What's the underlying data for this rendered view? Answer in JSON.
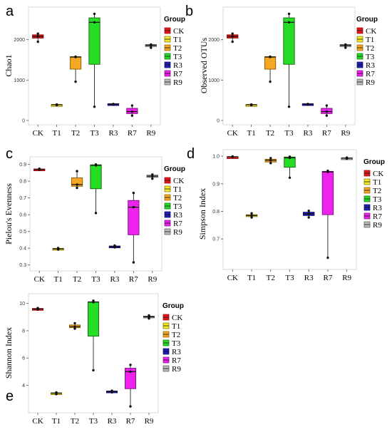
{
  "legend": {
    "title": "Group",
    "items": [
      {
        "label": "CK",
        "color": "#e31a1c"
      },
      {
        "label": "T1",
        "color": "#f2ea28"
      },
      {
        "label": "T2",
        "color": "#f5a623"
      },
      {
        "label": "T3",
        "color": "#26dd26"
      },
      {
        "label": "R3",
        "color": "#1f1fb4"
      },
      {
        "label": "R7",
        "color": "#ee22ee"
      },
      {
        "label": "R9",
        "color": "#bdbdbd"
      }
    ]
  },
  "chart_data": [
    {
      "panel": "a",
      "type": "box",
      "ylabel": "Chao1",
      "ylim": [
        0,
        2700
      ],
      "yticks": [
        0,
        1000,
        2000
      ],
      "categories": [
        "CK",
        "T1",
        "T2",
        "T3",
        "R3",
        "R7",
        "R9"
      ],
      "boxes": [
        {
          "min": 1950,
          "q1": 2040,
          "median": 2080,
          "q3": 2120,
          "max": 2160
        },
        {
          "min": 370,
          "q1": 385,
          "median": 390,
          "q3": 395,
          "max": 400
        },
        {
          "min": 960,
          "q1": 1270,
          "median": 1570,
          "q3": 1580,
          "max": 1590
        },
        {
          "min": 340,
          "q1": 1390,
          "median": 2430,
          "q3": 2540,
          "max": 2640
        },
        {
          "min": 385,
          "q1": 395,
          "median": 405,
          "q3": 415,
          "max": 425
        },
        {
          "min": 120,
          "q1": 170,
          "median": 220,
          "q3": 300,
          "max": 370
        },
        {
          "min": 1800,
          "q1": 1830,
          "median": 1860,
          "q3": 1880,
          "max": 1895
        }
      ],
      "points": [
        [
          2150,
          1950,
          2080
        ],
        [
          380,
          395,
          390
        ],
        [
          1580,
          960,
          1570
        ],
        [
          2640,
          2430,
          340
        ],
        [
          400,
          410,
          395
        ],
        [
          120,
          220,
          370
        ],
        [
          1800,
          1860,
          1880
        ]
      ]
    },
    {
      "panel": "b",
      "type": "box",
      "ylabel": "Observed OTUs",
      "ylim": [
        0,
        2700
      ],
      "yticks": [
        0,
        1000,
        2000
      ],
      "categories": [
        "CK",
        "T1",
        "T2",
        "T3",
        "R3",
        "R7",
        "R9"
      ],
      "boxes": [
        {
          "min": 1950,
          "q1": 2040,
          "median": 2080,
          "q3": 2120,
          "max": 2160
        },
        {
          "min": 370,
          "q1": 385,
          "median": 390,
          "q3": 395,
          "max": 400
        },
        {
          "min": 960,
          "q1": 1270,
          "median": 1570,
          "q3": 1580,
          "max": 1590
        },
        {
          "min": 340,
          "q1": 1390,
          "median": 2430,
          "q3": 2540,
          "max": 2640
        },
        {
          "min": 385,
          "q1": 395,
          "median": 405,
          "q3": 415,
          "max": 425
        },
        {
          "min": 120,
          "q1": 170,
          "median": 220,
          "q3": 300,
          "max": 370
        },
        {
          "min": 1800,
          "q1": 1830,
          "median": 1860,
          "q3": 1880,
          "max": 1895
        }
      ],
      "points": [
        [
          2150,
          1950,
          2080
        ],
        [
          380,
          395,
          390
        ],
        [
          1580,
          960,
          1570
        ],
        [
          2640,
          2430,
          340
        ],
        [
          400,
          410,
          395
        ],
        [
          120,
          220,
          370
        ],
        [
          1800,
          1860,
          1880
        ]
      ]
    },
    {
      "panel": "c",
      "type": "box",
      "ylabel": "Pielou's Evenness",
      "ylim": [
        0.29,
        0.92
      ],
      "yticks": [
        0.3,
        0.4,
        0.5,
        0.6,
        0.7,
        0.8,
        0.9
      ],
      "categories": [
        "CK",
        "T1",
        "T2",
        "T3",
        "R3",
        "R7",
        "R9"
      ],
      "boxes": [
        {
          "min": 0.868,
          "q1": 0.869,
          "median": 0.871,
          "q3": 0.873,
          "max": 0.875
        },
        {
          "min": 0.392,
          "q1": 0.394,
          "median": 0.396,
          "q3": 0.399,
          "max": 0.401
        },
        {
          "min": 0.76,
          "q1": 0.77,
          "median": 0.78,
          "q3": 0.82,
          "max": 0.86
        },
        {
          "min": 0.61,
          "q1": 0.755,
          "median": 0.895,
          "q3": 0.898,
          "max": 0.9
        },
        {
          "min": 0.405,
          "q1": 0.407,
          "median": 0.41,
          "q3": 0.413,
          "max": 0.416
        },
        {
          "min": 0.315,
          "q1": 0.48,
          "median": 0.645,
          "q3": 0.685,
          "max": 0.73
        },
        {
          "min": 0.815,
          "q1": 0.823,
          "median": 0.83,
          "q3": 0.836,
          "max": 0.84
        }
      ],
      "points": [
        [
          0.871,
          0.868,
          0.875
        ],
        [
          0.392,
          0.396,
          0.401
        ],
        [
          0.76,
          0.78,
          0.86
        ],
        [
          0.61,
          0.895,
          0.9
        ],
        [
          0.405,
          0.41,
          0.416
        ],
        [
          0.315,
          0.645,
          0.73
        ],
        [
          0.815,
          0.83,
          0.84
        ]
      ]
    },
    {
      "panel": "d",
      "type": "box",
      "ylabel": "Simpson Index",
      "ylim": [
        0.605,
        1.008
      ],
      "yticks": [
        0.7,
        0.8,
        0.9,
        1.0
      ],
      "categories": [
        "CK",
        "T1",
        "T2",
        "T3",
        "R3",
        "R7",
        "R9"
      ],
      "boxes": [
        {
          "min": 0.996,
          "q1": 0.997,
          "median": 0.998,
          "q3": 0.998,
          "max": 0.999
        },
        {
          "min": 0.778,
          "q1": 0.781,
          "median": 0.785,
          "q3": 0.788,
          "max": 0.793
        },
        {
          "min": 0.975,
          "q1": 0.979,
          "median": 0.985,
          "q3": 0.989,
          "max": 0.993
        },
        {
          "min": 0.922,
          "q1": 0.96,
          "median": 0.994,
          "q3": 0.997,
          "max": 0.998
        },
        {
          "min": 0.778,
          "q1": 0.785,
          "median": 0.791,
          "q3": 0.797,
          "max": 0.802
        },
        {
          "min": 0.632,
          "q1": 0.788,
          "median": 0.943,
          "q3": 0.945,
          "max": 0.947
        },
        {
          "min": 0.991,
          "q1": 0.992,
          "median": 0.993,
          "q3": 0.994,
          "max": 0.995
        }
      ],
      "points": [
        [
          0.998,
          0.997,
          0.999
        ],
        [
          0.778,
          0.785,
          0.793
        ],
        [
          0.975,
          0.985,
          0.993
        ],
        [
          0.922,
          0.994,
          0.998
        ],
        [
          0.778,
          0.791,
          0.802
        ],
        [
          0.632,
          0.943,
          0.947
        ],
        [
          0.991,
          0.993,
          0.995
        ]
      ]
    },
    {
      "panel": "e",
      "type": "box",
      "ylabel": "Shannon Index",
      "ylim": [
        2.3,
        10.4
      ],
      "yticks": [
        4,
        6,
        8,
        10
      ],
      "categories": [
        "CK",
        "T1",
        "T2",
        "T3",
        "R3",
        "R7",
        "R9"
      ],
      "boxes": [
        {
          "min": 9.55,
          "q1": 9.57,
          "median": 9.6,
          "q3": 9.63,
          "max": 9.66
        },
        {
          "min": 3.35,
          "q1": 3.38,
          "median": 3.42,
          "q3": 3.45,
          "max": 3.48
        },
        {
          "min": 8.15,
          "q1": 8.22,
          "median": 8.3,
          "q3": 8.42,
          "max": 8.55
        },
        {
          "min": 5.1,
          "q1": 7.6,
          "median": 10.1,
          "q3": 10.12,
          "max": 10.2
        },
        {
          "min": 3.48,
          "q1": 3.51,
          "median": 3.55,
          "q3": 3.58,
          "max": 3.6
        },
        {
          "min": 2.45,
          "q1": 3.75,
          "median": 5.0,
          "q3": 5.25,
          "max": 5.5
        },
        {
          "min": 8.9,
          "q1": 8.96,
          "median": 9.02,
          "q3": 9.07,
          "max": 9.12
        }
      ],
      "points": [
        [
          9.6,
          9.55,
          9.66
        ],
        [
          3.35,
          3.42,
          3.48
        ],
        [
          8.15,
          8.3,
          8.55
        ],
        [
          5.1,
          10.1,
          10.2
        ],
        [
          3.48,
          3.55,
          3.6
        ],
        [
          2.45,
          5.0,
          5.5
        ],
        [
          8.9,
          9.02,
          9.12
        ]
      ]
    }
  ]
}
